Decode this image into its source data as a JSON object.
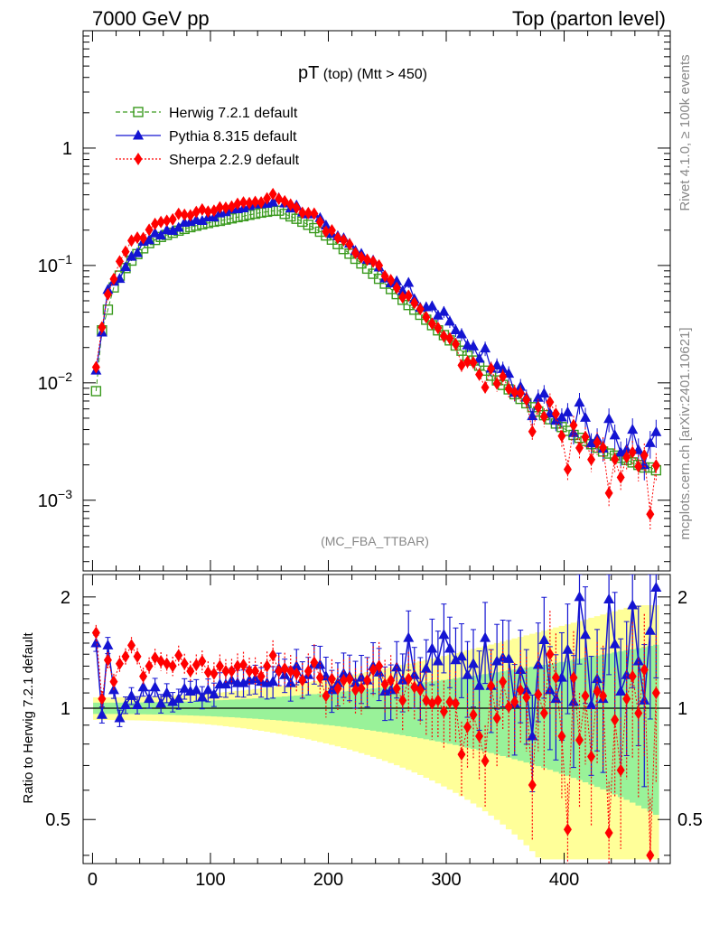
{
  "header": {
    "left": "7000 GeV pp",
    "right": "Top (parton level)"
  },
  "side": {
    "rivet": "Rivet 4.1.0, ≥ 100k events",
    "mcplots": "mcplots.cern.ch [arXiv:2401.10621]"
  },
  "plot": {
    "title_main": "pT",
    "title_sub": " (top) (Mtt > 450)",
    "analysis": "(MC_FBA_TTBAR)",
    "ratio_ylabel": "Ratio to Herwig 7.2.1 default"
  },
  "legend": [
    {
      "name": "Herwig 7.2.1 default",
      "color": "#3a9a1e",
      "marker": "open-square",
      "line": "dashed"
    },
    {
      "name": "Pythia 8.315 default",
      "color": "#1414d2",
      "marker": "triangle",
      "line": "solid"
    },
    {
      "name": "Sherpa 2.2.9 default",
      "color": "#ff0000",
      "marker": "diamond",
      "line": "dotted"
    }
  ],
  "colors": {
    "band_yellow": "#ffff99",
    "band_green": "#99f299",
    "herwig": "#3a9a1e",
    "pythia": "#1414d2",
    "sherpa": "#ff0000"
  },
  "chart_data": {
    "type": "line",
    "title": "pT (top) (Mtt > 450)",
    "xlabel": "",
    "ylabel": "",
    "x_ticks": [
      0,
      100,
      200,
      300,
      400
    ],
    "xlim": [
      -8,
      490
    ],
    "main_ylim": [
      0.00025,
      10
    ],
    "main_yscale": "log",
    "main_y_ticks": [
      {
        "value": 0.001,
        "base": "10",
        "exp": "−3"
      },
      {
        "value": 0.01,
        "base": "10",
        "exp": "−2"
      },
      {
        "value": 0.1,
        "base": "10",
        "exp": "−1"
      },
      {
        "value": 1,
        "base": "1",
        "exp": ""
      }
    ],
    "ratio_ylim": [
      0.38,
      2.3
    ],
    "ratio_yscale": "log",
    "ratio_y_ticks": [
      {
        "value": 0.5,
        "label": "0.5"
      },
      {
        "value": 1,
        "label": "1"
      },
      {
        "value": 2,
        "label": "2"
      }
    ],
    "x": [
      3,
      8,
      13,
      18,
      23,
      28,
      33,
      38,
      43,
      48,
      53,
      58,
      63,
      68,
      73,
      78,
      83,
      88,
      93,
      98,
      103,
      108,
      113,
      118,
      123,
      128,
      133,
      138,
      143,
      148,
      153,
      158,
      163,
      168,
      173,
      178,
      183,
      188,
      193,
      198,
      203,
      208,
      213,
      218,
      223,
      228,
      233,
      238,
      243,
      248,
      253,
      258,
      263,
      268,
      273,
      278,
      283,
      288,
      293,
      298,
      303,
      308,
      313,
      318,
      323,
      328,
      333,
      338,
      343,
      348,
      353,
      358,
      363,
      368,
      373,
      378,
      383,
      388,
      393,
      398,
      403,
      408,
      413,
      418,
      423,
      428,
      433,
      438,
      443,
      448,
      453,
      458,
      463,
      468,
      473,
      478
    ],
    "series": [
      {
        "name": "Herwig 7.2.1 default",
        "values": [
          0.0085,
          0.028,
          0.042,
          0.065,
          0.082,
          0.095,
          0.11,
          0.125,
          0.14,
          0.155,
          0.165,
          0.175,
          0.182,
          0.19,
          0.198,
          0.205,
          0.212,
          0.218,
          0.224,
          0.23,
          0.236,
          0.24,
          0.246,
          0.252,
          0.258,
          0.263,
          0.27,
          0.276,
          0.282,
          0.287,
          0.292,
          0.293,
          0.275,
          0.262,
          0.25,
          0.236,
          0.222,
          0.208,
          0.194,
          0.18,
          0.166,
          0.152,
          0.138,
          0.126,
          0.114,
          0.104,
          0.094,
          0.085,
          0.077,
          0.07,
          0.063,
          0.057,
          0.051,
          0.046,
          0.042,
          0.038,
          0.0345,
          0.031,
          0.028,
          0.0255,
          0.023,
          0.0208,
          0.0188,
          0.017,
          0.0155,
          0.014,
          0.0127,
          0.0115,
          0.0105,
          0.0096,
          0.0088,
          0.008,
          0.0073,
          0.0067,
          0.0062,
          0.0057,
          0.0053,
          0.0049,
          0.0045,
          0.0042,
          0.0039,
          0.0036,
          0.0034,
          0.0032,
          0.003,
          0.0028,
          0.0026,
          0.0025,
          0.0024,
          0.0023,
          0.0022,
          0.0021,
          0.002,
          0.0019,
          0.0019,
          0.0018
        ]
      },
      {
        "name": "Pythia 8.315 default",
        "ratio": [
          1.5,
          0.96,
          1.48,
          1.12,
          0.94,
          1.02,
          1.08,
          1.02,
          1.14,
          1.06,
          1.14,
          1.03,
          1.1,
          1.04,
          1.06,
          1.13,
          1.11,
          1.12,
          1.07,
          1.12,
          1.09,
          1.16,
          1.16,
          1.19,
          1.17,
          1.17,
          1.19,
          1.2,
          1.18,
          1.17,
          1.18,
          1.28,
          1.23,
          1.17,
          1.3,
          1.2,
          1.23,
          1.32,
          1.31,
          1.22,
          1.12,
          1.17,
          1.24,
          1.22,
          1.17,
          1.21,
          1.19,
          1.3,
          1.25,
          1.11,
          1.12,
          1.29,
          1.19,
          1.55,
          1.23,
          1.15,
          1.28,
          1.45,
          1.34,
          1.58,
          1.45,
          1.35,
          1.38,
          1.23,
          1.32,
          1.15,
          1.55,
          1.15,
          1.34,
          1.37,
          1.36,
          1.03,
          1.27,
          1.12,
          0.84,
          1.31,
          1.53,
          1.12,
          1.06,
          1.21,
          1.44,
          1.04,
          2.0,
          1.58,
          1.02,
          1.2,
          1.06,
          1.97,
          1.49,
          1.11,
          1.23,
          1.9,
          1.34,
          1.05,
          1.62,
          2.12
        ]
      },
      {
        "name": "Sherpa 2.2.9 default",
        "ratio": [
          1.6,
          1.06,
          1.35,
          1.18,
          1.32,
          1.38,
          1.48,
          1.38,
          1.22,
          1.3,
          1.37,
          1.34,
          1.32,
          1.3,
          1.39,
          1.32,
          1.26,
          1.31,
          1.34,
          1.25,
          1.24,
          1.3,
          1.26,
          1.26,
          1.3,
          1.31,
          1.26,
          1.26,
          1.22,
          1.3,
          1.39,
          1.26,
          1.28,
          1.26,
          1.24,
          1.19,
          1.26,
          1.33,
          1.21,
          1.08,
          1.2,
          1.13,
          1.19,
          1.2,
          1.12,
          1.13,
          1.19,
          1.27,
          1.3,
          1.16,
          1.19,
          1.13,
          1.05,
          1.2,
          1.14,
          1.12,
          1.05,
          1.03,
          1.05,
          0.98,
          1.04,
          1.03,
          0.75,
          0.89,
          0.96,
          0.84,
          0.72,
          1.15,
          0.94,
          1.18,
          1.01,
          1.04,
          1.12,
          1.07,
          0.62,
          1.09,
          0.97,
          1.4,
          1.21,
          0.84,
          0.47,
          1.21,
          0.82,
          1.08,
          0.74,
          1.11,
          1.08,
          0.46,
          0.93,
          0.68,
          1.06,
          1.22,
          0.97,
          1.27,
          0.4,
          1.1
        ]
      }
    ]
  }
}
